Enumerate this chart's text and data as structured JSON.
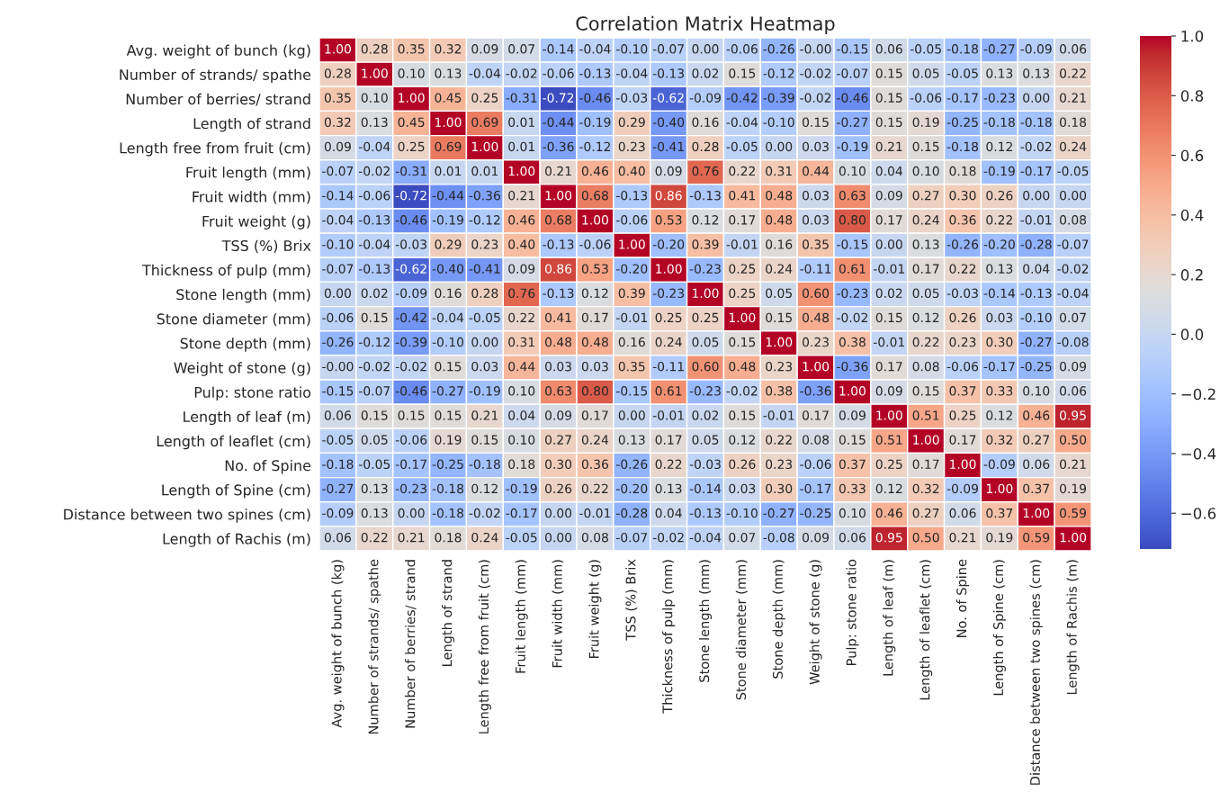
{
  "chart_data": {
    "type": "heatmap",
    "title": "Correlation Matrix Heatmap",
    "categories": [
      "Avg. weight of bunch (kg)",
      "Number of strands/ spathe",
      "Number of berries/ strand",
      "Length of strand",
      "Length free from fruit (cm)",
      "Fruit length (mm)",
      "Fruit width (mm)",
      "Fruit weight (g)",
      "TSS (%) Brix",
      "Thickness of pulp (mm)",
      "Stone length (mm)",
      "Stone diameter (mm)",
      "Stone depth (mm)",
      "Weight of stone (g)",
      "Pulp: stone ratio",
      "Length of leaf (m)",
      "Length of leaflet (cm)",
      "No. of Spine",
      "Length of Spine (cm)",
      "Distance between two spines (cm)",
      "Length of Rachis (m)"
    ],
    "y_categories": [
      "Avg. weight of bunch (kg)",
      "Number of strands/ spathe",
      "Number of berries/ strand",
      "Length of strand",
      "Length free from fruit (cm)",
      "Fruit length (mm)",
      "Fruit width (mm)",
      "Fruit weight (g)",
      "TSS (%) Brix",
      "Thickness of pulp (mm)",
      "Stone length (mm)",
      "Stone diameter (mm)",
      "Stone depth (mm)",
      "Weight of stone (g)",
      "Pulp: stone ratio",
      "Length of leaf (m)",
      "Length of leaflet (cm)",
      "No. of Spine",
      "Length of Spine (cm)",
      "Distance between two spines (cm)",
      "Length of Rachis (m)"
    ],
    "cells": [
      [
        1.0,
        0.28,
        0.35,
        0.32,
        0.09,
        0.07,
        -0.14,
        -0.04,
        -0.1,
        -0.07,
        0.0,
        -0.06,
        -0.26,
        -0.0,
        -0.15,
        0.06,
        -0.05,
        -0.18,
        -0.27,
        -0.09,
        0.06
      ],
      [
        0.28,
        1.0,
        0.1,
        0.13,
        -0.04,
        -0.02,
        -0.06,
        -0.13,
        -0.04,
        -0.13,
        0.02,
        0.15,
        -0.12,
        -0.02,
        -0.07,
        0.15,
        0.05,
        -0.05,
        0.13,
        0.13,
        0.22
      ],
      [
        0.35,
        0.1,
        1.0,
        0.45,
        0.25,
        -0.31,
        -0.72,
        -0.46,
        -0.03,
        -0.62,
        -0.09,
        -0.42,
        -0.39,
        -0.02,
        -0.46,
        0.15,
        -0.06,
        -0.17,
        -0.23,
        0.0,
        0.21
      ],
      [
        0.32,
        0.13,
        0.45,
        1.0,
        0.69,
        0.01,
        -0.44,
        -0.19,
        0.29,
        -0.4,
        0.16,
        -0.04,
        -0.1,
        0.15,
        -0.27,
        0.15,
        0.19,
        -0.25,
        -0.18,
        -0.18,
        0.18
      ],
      [
        0.09,
        -0.04,
        0.25,
        0.69,
        1.0,
        0.01,
        -0.36,
        -0.12,
        0.23,
        -0.41,
        0.28,
        -0.05,
        0.0,
        0.03,
        -0.19,
        0.21,
        0.15,
        -0.18,
        0.12,
        -0.02,
        0.24
      ],
      [
        -0.07,
        -0.02,
        -0.31,
        0.01,
        0.01,
        1.0,
        0.21,
        0.46,
        0.4,
        0.09,
        0.76,
        0.22,
        0.31,
        0.44,
        0.1,
        0.04,
        0.1,
        0.18,
        -0.19,
        -0.17,
        -0.05
      ],
      [
        -0.14,
        -0.06,
        -0.72,
        -0.44,
        -0.36,
        0.21,
        1.0,
        0.68,
        -0.13,
        0.86,
        -0.13,
        0.41,
        0.48,
        0.03,
        0.63,
        0.09,
        0.27,
        0.3,
        0.26,
        0.0,
        0.0
      ],
      [
        -0.04,
        -0.13,
        -0.46,
        -0.19,
        -0.12,
        0.46,
        0.68,
        1.0,
        -0.06,
        0.53,
        0.12,
        0.17,
        0.48,
        0.03,
        0.8,
        0.17,
        0.24,
        0.36,
        0.22,
        -0.01,
        0.08
      ],
      [
        -0.1,
        -0.04,
        -0.03,
        0.29,
        0.23,
        0.4,
        -0.13,
        -0.06,
        1.0,
        -0.2,
        0.39,
        -0.01,
        0.16,
        0.35,
        -0.15,
        0.0,
        0.13,
        -0.26,
        -0.2,
        -0.28,
        -0.07
      ],
      [
        -0.07,
        -0.13,
        -0.62,
        -0.4,
        -0.41,
        0.09,
        0.86,
        0.53,
        -0.2,
        1.0,
        -0.23,
        0.25,
        0.24,
        -0.11,
        0.61,
        -0.01,
        0.17,
        0.22,
        0.13,
        0.04,
        -0.02
      ],
      [
        0.0,
        0.02,
        -0.09,
        0.16,
        0.28,
        0.76,
        -0.13,
        0.12,
        0.39,
        -0.23,
        1.0,
        0.25,
        0.05,
        0.6,
        -0.23,
        0.02,
        0.05,
        -0.03,
        -0.14,
        -0.13,
        -0.04
      ],
      [
        -0.06,
        0.15,
        -0.42,
        -0.04,
        -0.05,
        0.22,
        0.41,
        0.17,
        -0.01,
        0.25,
        0.25,
        1.0,
        0.15,
        0.48,
        -0.02,
        0.15,
        0.12,
        0.26,
        0.03,
        -0.1,
        0.07
      ],
      [
        -0.26,
        -0.12,
        -0.39,
        -0.1,
        0.0,
        0.31,
        0.48,
        0.48,
        0.16,
        0.24,
        0.05,
        0.15,
        1.0,
        0.23,
        0.38,
        -0.01,
        0.22,
        0.23,
        0.3,
        -0.27,
        -0.08
      ],
      [
        -0.0,
        -0.02,
        -0.02,
        0.15,
        0.03,
        0.44,
        0.03,
        0.03,
        0.35,
        -0.11,
        0.6,
        0.48,
        0.23,
        1.0,
        -0.36,
        0.17,
        0.08,
        -0.06,
        -0.17,
        -0.25,
        0.09
      ],
      [
        -0.15,
        -0.07,
        -0.46,
        -0.27,
        -0.19,
        0.1,
        0.63,
        0.8,
        -0.15,
        0.61,
        -0.23,
        -0.02,
        0.38,
        -0.36,
        1.0,
        0.09,
        0.15,
        0.37,
        0.33,
        0.1,
        0.06
      ],
      [
        0.06,
        0.15,
        0.15,
        0.15,
        0.21,
        0.04,
        0.09,
        0.17,
        0.0,
        -0.01,
        0.02,
        0.15,
        -0.01,
        0.17,
        0.09,
        1.0,
        0.51,
        0.25,
        0.12,
        0.46,
        0.95
      ],
      [
        -0.05,
        0.05,
        -0.06,
        0.19,
        0.15,
        0.1,
        0.27,
        0.24,
        0.13,
        0.17,
        0.05,
        0.12,
        0.22,
        0.08,
        0.15,
        0.51,
        1.0,
        0.17,
        0.32,
        0.27,
        0.5
      ],
      [
        -0.18,
        -0.05,
        -0.17,
        -0.25,
        -0.18,
        0.18,
        0.3,
        0.36,
        -0.26,
        0.22,
        -0.03,
        0.26,
        0.23,
        -0.06,
        0.37,
        0.25,
        0.17,
        1.0,
        -0.09,
        0.06,
        0.21
      ],
      [
        -0.27,
        0.13,
        -0.23,
        -0.18,
        0.12,
        -0.19,
        0.26,
        0.22,
        -0.2,
        0.13,
        -0.14,
        0.03,
        0.3,
        -0.17,
        0.33,
        0.12,
        0.32,
        -0.09,
        1.0,
        0.37,
        0.19
      ],
      [
        -0.09,
        0.13,
        0.0,
        -0.18,
        -0.02,
        -0.17,
        0.0,
        -0.01,
        -0.28,
        0.04,
        -0.13,
        -0.1,
        -0.27,
        -0.25,
        0.1,
        0.46,
        0.27,
        0.06,
        0.37,
        1.0,
        0.59
      ],
      [
        0.06,
        0.22,
        0.21,
        0.18,
        0.24,
        -0.05,
        0.0,
        0.08,
        -0.07,
        -0.02,
        -0.04,
        0.07,
        -0.08,
        0.09,
        0.06,
        0.95,
        0.5,
        0.21,
        0.19,
        0.59,
        1.0
      ]
    ],
    "cell_labels": [
      [
        "1.00",
        "0.28",
        "0.35",
        "0.32",
        "0.09",
        "0.07",
        "-0.14",
        "-0.04",
        "-0.10",
        "-0.07",
        "0.00",
        "-0.06",
        "-0.26",
        "-0.00",
        "-0.15",
        "0.06",
        "-0.05",
        "-0.18",
        "-0.27",
        "-0.09",
        "0.06"
      ],
      [
        "0.28",
        "1.00",
        "0.10",
        "0.13",
        "-0.04",
        "-0.02",
        "-0.06",
        "-0.13",
        "-0.04",
        "-0.13",
        "0.02",
        "0.15",
        "-0.12",
        "-0.02",
        "-0.07",
        "0.15",
        "0.05",
        "-0.05",
        "0.13",
        "0.13",
        "0.22"
      ],
      [
        "0.35",
        "0.10",
        "1.00",
        "0.45",
        "0.25",
        "-0.31",
        "-0.72",
        "-0.46",
        "-0.03",
        "-0.62",
        "-0.09",
        "-0.42",
        "-0.39",
        "-0.02",
        "-0.46",
        "0.15",
        "-0.06",
        "-0.17",
        "-0.23",
        "0.00",
        "0.21"
      ],
      [
        "0.32",
        "0.13",
        "0.45",
        "1.00",
        "0.69",
        "0.01",
        "-0.44",
        "-0.19",
        "0.29",
        "-0.40",
        "0.16",
        "-0.04",
        "-0.10",
        "0.15",
        "-0.27",
        "0.15",
        "0.19",
        "-0.25",
        "-0.18",
        "-0.18",
        "0.18"
      ],
      [
        "0.09",
        "-0.04",
        "0.25",
        "0.69",
        "1.00",
        "0.01",
        "-0.36",
        "-0.12",
        "0.23",
        "-0.41",
        "0.28",
        "-0.05",
        "0.00",
        "0.03",
        "-0.19",
        "0.21",
        "0.15",
        "-0.18",
        "0.12",
        "-0.02",
        "0.24"
      ],
      [
        "-0.07",
        "-0.02",
        "-0.31",
        "0.01",
        "0.01",
        "1.00",
        "0.21",
        "0.46",
        "0.40",
        "0.09",
        "0.76",
        "0.22",
        "0.31",
        "0.44",
        "0.10",
        "0.04",
        "0.10",
        "0.18",
        "-0.19",
        "-0.17",
        "-0.05"
      ],
      [
        "-0.14",
        "-0.06",
        "-0.72",
        "-0.44",
        "-0.36",
        "0.21",
        "1.00",
        "0.68",
        "-0.13",
        "0.86",
        "-0.13",
        "0.41",
        "0.48",
        "0.03",
        "0.63",
        "0.09",
        "0.27",
        "0.30",
        "0.26",
        "0.00",
        "0.00"
      ],
      [
        "-0.04",
        "-0.13",
        "-0.46",
        "-0.19",
        "-0.12",
        "0.46",
        "0.68",
        "1.00",
        "-0.06",
        "0.53",
        "0.12",
        "0.17",
        "0.48",
        "0.03",
        "0.80",
        "0.17",
        "0.24",
        "0.36",
        "0.22",
        "-0.01",
        "0.08"
      ],
      [
        "-0.10",
        "-0.04",
        "-0.03",
        "0.29",
        "0.23",
        "0.40",
        "-0.13",
        "-0.06",
        "1.00",
        "-0.20",
        "0.39",
        "-0.01",
        "0.16",
        "0.35",
        "-0.15",
        "0.00",
        "0.13",
        "-0.26",
        "-0.20",
        "-0.28",
        "-0.07"
      ],
      [
        "-0.07",
        "-0.13",
        "-0.62",
        "-0.40",
        "-0.41",
        "0.09",
        "0.86",
        "0.53",
        "-0.20",
        "1.00",
        "-0.23",
        "0.25",
        "0.24",
        "-0.11",
        "0.61",
        "-0.01",
        "0.17",
        "0.22",
        "0.13",
        "0.04",
        "-0.02"
      ],
      [
        "0.00",
        "0.02",
        "-0.09",
        "0.16",
        "0.28",
        "0.76",
        "-0.13",
        "0.12",
        "0.39",
        "-0.23",
        "1.00",
        "0.25",
        "0.05",
        "0.60",
        "-0.23",
        "0.02",
        "0.05",
        "-0.03",
        "-0.14",
        "-0.13",
        "-0.04"
      ],
      [
        "-0.06",
        "0.15",
        "-0.42",
        "-0.04",
        "-0.05",
        "0.22",
        "0.41",
        "0.17",
        "-0.01",
        "0.25",
        "0.25",
        "1.00",
        "0.15",
        "0.48",
        "-0.02",
        "0.15",
        "0.12",
        "0.26",
        "0.03",
        "-0.10",
        "0.07"
      ],
      [
        "-0.26",
        "-0.12",
        "-0.39",
        "-0.10",
        "0.00",
        "0.31",
        "0.48",
        "0.48",
        "0.16",
        "0.24",
        "0.05",
        "0.15",
        "1.00",
        "0.23",
        "0.38",
        "-0.01",
        "0.22",
        "0.23",
        "0.30",
        "-0.27",
        "-0.08"
      ],
      [
        "-0.00",
        "-0.02",
        "-0.02",
        "0.15",
        "0.03",
        "0.44",
        "0.03",
        "0.03",
        "0.35",
        "-0.11",
        "0.60",
        "0.48",
        "0.23",
        "1.00",
        "-0.36",
        "0.17",
        "0.08",
        "-0.06",
        "-0.17",
        "-0.25",
        "0.09"
      ],
      [
        "-0.15",
        "-0.07",
        "-0.46",
        "-0.27",
        "-0.19",
        "0.10",
        "0.63",
        "0.80",
        "-0.15",
        "0.61",
        "-0.23",
        "-0.02",
        "0.38",
        "-0.36",
        "1.00",
        "0.09",
        "0.15",
        "0.37",
        "0.33",
        "0.10",
        "0.06"
      ],
      [
        "0.06",
        "0.15",
        "0.15",
        "0.15",
        "0.21",
        "0.04",
        "0.09",
        "0.17",
        "0.00",
        "-0.01",
        "0.02",
        "0.15",
        "-0.01",
        "0.17",
        "0.09",
        "1.00",
        "0.51",
        "0.25",
        "0.12",
        "0.46",
        "0.95"
      ],
      [
        "-0.05",
        "0.05",
        "-0.06",
        "0.19",
        "0.15",
        "0.10",
        "0.27",
        "0.24",
        "0.13",
        "0.17",
        "0.05",
        "0.12",
        "0.22",
        "0.08",
        "0.15",
        "0.51",
        "1.00",
        "0.17",
        "0.32",
        "0.27",
        "0.50"
      ],
      [
        "-0.18",
        "-0.05",
        "-0.17",
        "-0.25",
        "-0.18",
        "0.18",
        "0.30",
        "0.36",
        "-0.26",
        "0.22",
        "-0.03",
        "0.26",
        "0.23",
        "-0.06",
        "0.37",
        "0.25",
        "0.17",
        "1.00",
        "-0.09",
        "0.06",
        "0.21"
      ],
      [
        "-0.27",
        "0.13",
        "-0.23",
        "-0.18",
        "0.12",
        "-0.19",
        "0.26",
        "0.22",
        "-0.20",
        "0.13",
        "-0.14",
        "0.03",
        "0.30",
        "-0.17",
        "0.33",
        "0.12",
        "0.32",
        "-0.09",
        "1.00",
        "0.37",
        "0.19"
      ],
      [
        "-0.09",
        "0.13",
        "0.00",
        "-0.18",
        "-0.02",
        "-0.17",
        "0.00",
        "-0.01",
        "-0.28",
        "0.04",
        "-0.13",
        "-0.10",
        "-0.27",
        "-0.25",
        "0.10",
        "0.46",
        "0.27",
        "0.06",
        "0.37",
        "1.00",
        "0.59"
      ],
      [
        "0.06",
        "0.22",
        "0.21",
        "0.18",
        "0.24",
        "-0.05",
        "0.00",
        "0.08",
        "-0.07",
        "-0.02",
        "-0.04",
        "0.07",
        "-0.08",
        "0.09",
        "0.06",
        "0.95",
        "0.50",
        "0.21",
        "0.19",
        "0.59",
        "1.00"
      ]
    ],
    "clim": [
      -0.72,
      1.0
    ],
    "cticks": [
      {
        "value": 1.0,
        "label": "1.0"
      },
      {
        "value": 0.8,
        "label": "0.8"
      },
      {
        "value": 0.6,
        "label": "0.6"
      },
      {
        "value": 0.4,
        "label": "0.4"
      },
      {
        "value": 0.2,
        "label": "0.2"
      },
      {
        "value": 0.0,
        "label": "0.0"
      },
      {
        "value": -0.2,
        "label": "−0.2"
      },
      {
        "value": -0.4,
        "label": "−0.4"
      },
      {
        "value": -0.6,
        "label": "−0.6"
      }
    ]
  }
}
